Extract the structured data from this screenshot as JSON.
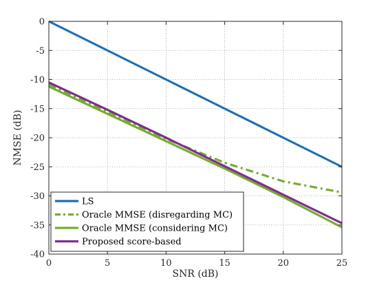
{
  "chart_data": {
    "type": "line",
    "title": "",
    "xlabel": "SNR (dB)",
    "ylabel": "NMSE (dB)",
    "xlim": [
      0,
      25
    ],
    "ylim": [
      -40,
      0
    ],
    "xticks": [
      0,
      5,
      10,
      15,
      20,
      25
    ],
    "yticks": [
      0,
      -5,
      -10,
      -15,
      -20,
      -25,
      -30,
      -35,
      -40
    ],
    "grid": true,
    "legend_position": "bottom-left",
    "x": [
      0,
      5,
      10,
      15,
      20,
      25
    ],
    "series": [
      {
        "name": "LS",
        "color": "#1f6fb4",
        "style": "solid",
        "values": [
          0,
          -5,
          -10,
          -15,
          -20,
          -25
        ]
      },
      {
        "name": "Oracle MMSE (disregarding MC)",
        "color": "#77ac30",
        "style": "dashdot",
        "values": [
          -10.9,
          -15.5,
          -20.2,
          -24.3,
          -27.5,
          -29.4
        ]
      },
      {
        "name": "Oracle MMSE (considering MC)",
        "color": "#77ac30",
        "style": "solid",
        "values": [
          -11.2,
          -15.9,
          -20.6,
          -25.3,
          -30.2,
          -35.4
        ]
      },
      {
        "name": "Proposed score-based",
        "color": "#7e2f8e",
        "style": "solid",
        "values": [
          -10.5,
          -15.2,
          -20.0,
          -24.9,
          -29.8,
          -34.7
        ]
      }
    ]
  }
}
